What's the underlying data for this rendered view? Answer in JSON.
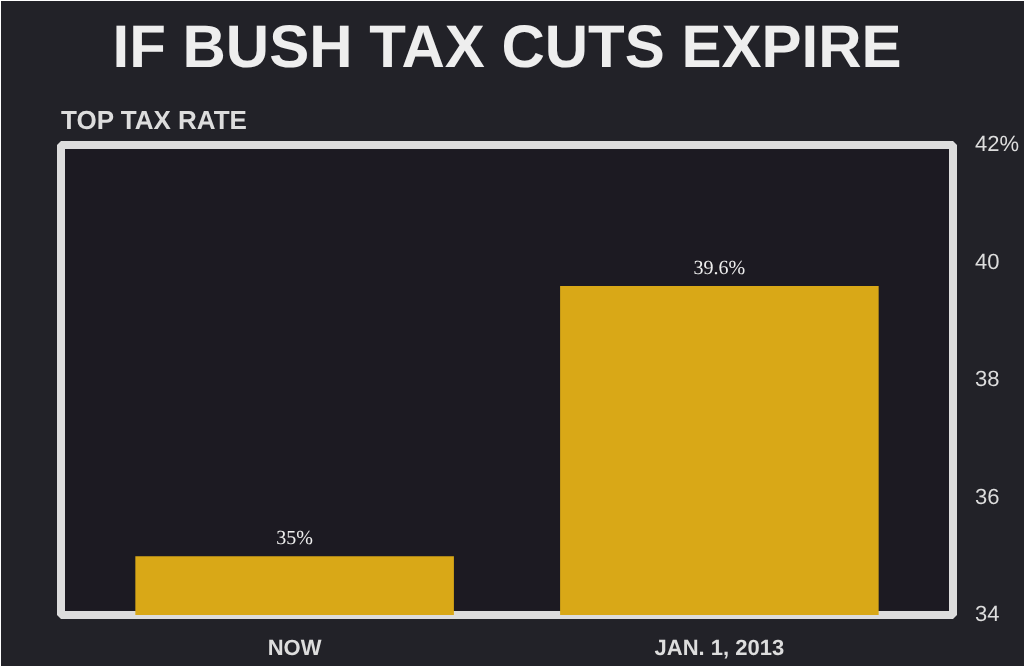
{
  "chart_data": {
    "type": "bar",
    "title": "IF BUSH TAX CUTS EXPIRE",
    "subtitle": "TOP TAX RATE",
    "categories": [
      "NOW",
      "JAN. 1, 2013"
    ],
    "values": [
      35,
      39.6
    ],
    "value_labels": [
      "35%",
      "39.6%"
    ],
    "color": "#d9a817",
    "ylim": [
      34,
      42
    ],
    "yticks": [
      34,
      36,
      38,
      {
        "value": 42,
        "label": "42%"
      },
      40
    ],
    "grid": false
  }
}
